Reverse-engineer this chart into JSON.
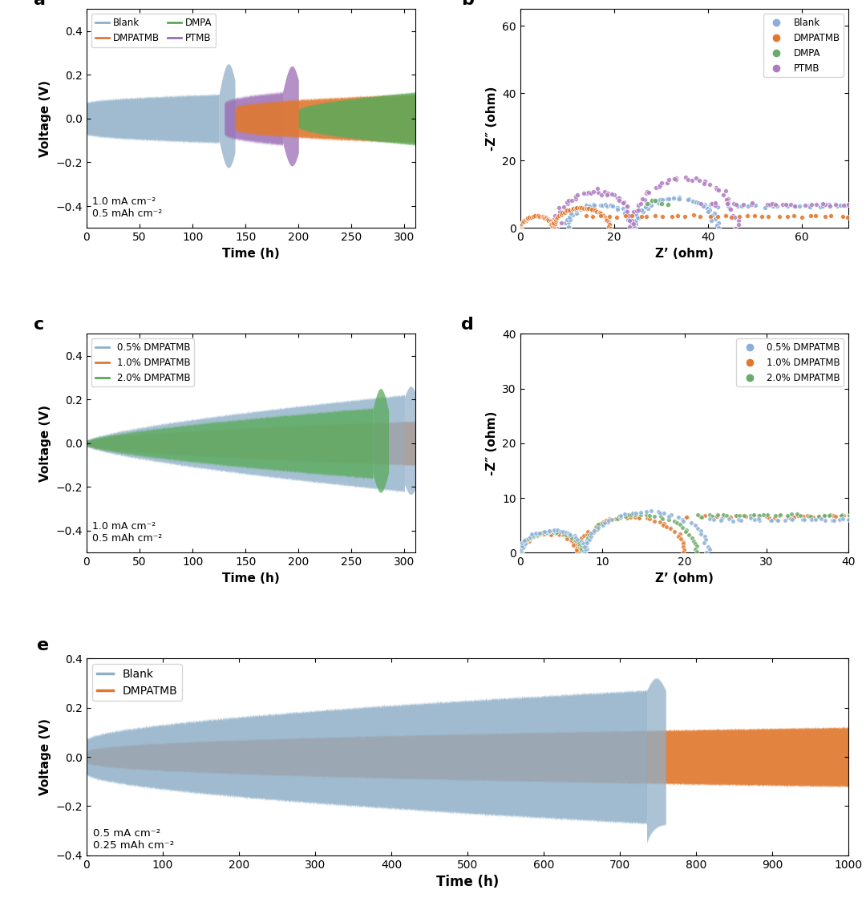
{
  "colors": {
    "blank_blue": "#8fafc8",
    "orange": "#e07830",
    "green": "#5aaa5a",
    "purple": "#9b6db5",
    "blue_scatter": "#8ab0d8",
    "green_scatter": "#6aaa6a",
    "purple_scatter": "#b07ac0"
  },
  "panel_a": {
    "xlabel": "Time (h)",
    "ylabel": "Voltage (V)",
    "xlim": [
      0,
      310
    ],
    "ylim": [
      -0.5,
      0.5
    ],
    "xticks": [
      0,
      50,
      100,
      150,
      200,
      250,
      300
    ],
    "yticks": [
      -0.4,
      -0.2,
      0.0,
      0.2,
      0.4
    ],
    "annotation_line1": "1.0 mA cm⁻²",
    "annotation_line2": "0.5 mAh cm⁻²"
  },
  "panel_b": {
    "xlabel": "Z’ (ohm)",
    "ylabel": "-Z″ (ohm)",
    "xlim": [
      0,
      70
    ],
    "ylim": [
      0,
      65
    ],
    "xticks": [
      0,
      20,
      40,
      60
    ],
    "yticks": [
      0,
      20,
      40,
      60
    ]
  },
  "panel_c": {
    "xlabel": "Time (h)",
    "ylabel": "Voltage (V)",
    "xlim": [
      0,
      310
    ],
    "ylim": [
      -0.5,
      0.5
    ],
    "xticks": [
      0,
      50,
      100,
      150,
      200,
      250,
      300
    ],
    "yticks": [
      -0.4,
      -0.2,
      0.0,
      0.2,
      0.4
    ],
    "annotation_line1": "1.0 mA cm⁻²",
    "annotation_line2": "0.5 mAh cm⁻²"
  },
  "panel_d": {
    "xlabel": "Z’ (ohm)",
    "ylabel": "-Z″ (ohm)",
    "xlim": [
      0,
      40
    ],
    "ylim": [
      0,
      40
    ],
    "xticks": [
      0,
      10,
      20,
      30,
      40
    ],
    "yticks": [
      0,
      10,
      20,
      30,
      40
    ]
  },
  "panel_e": {
    "xlabel": "Time (h)",
    "ylabel": "Voltage (V)",
    "xlim": [
      0,
      1000
    ],
    "ylim": [
      -0.4,
      0.4
    ],
    "xticks": [
      0,
      100,
      200,
      300,
      400,
      500,
      600,
      700,
      800,
      900,
      1000
    ],
    "yticks": [
      -0.4,
      -0.2,
      0.0,
      0.2,
      0.4
    ],
    "annotation_line1": "0.5 mA cm⁻²",
    "annotation_line2": "0.25 mAh cm⁻²"
  }
}
